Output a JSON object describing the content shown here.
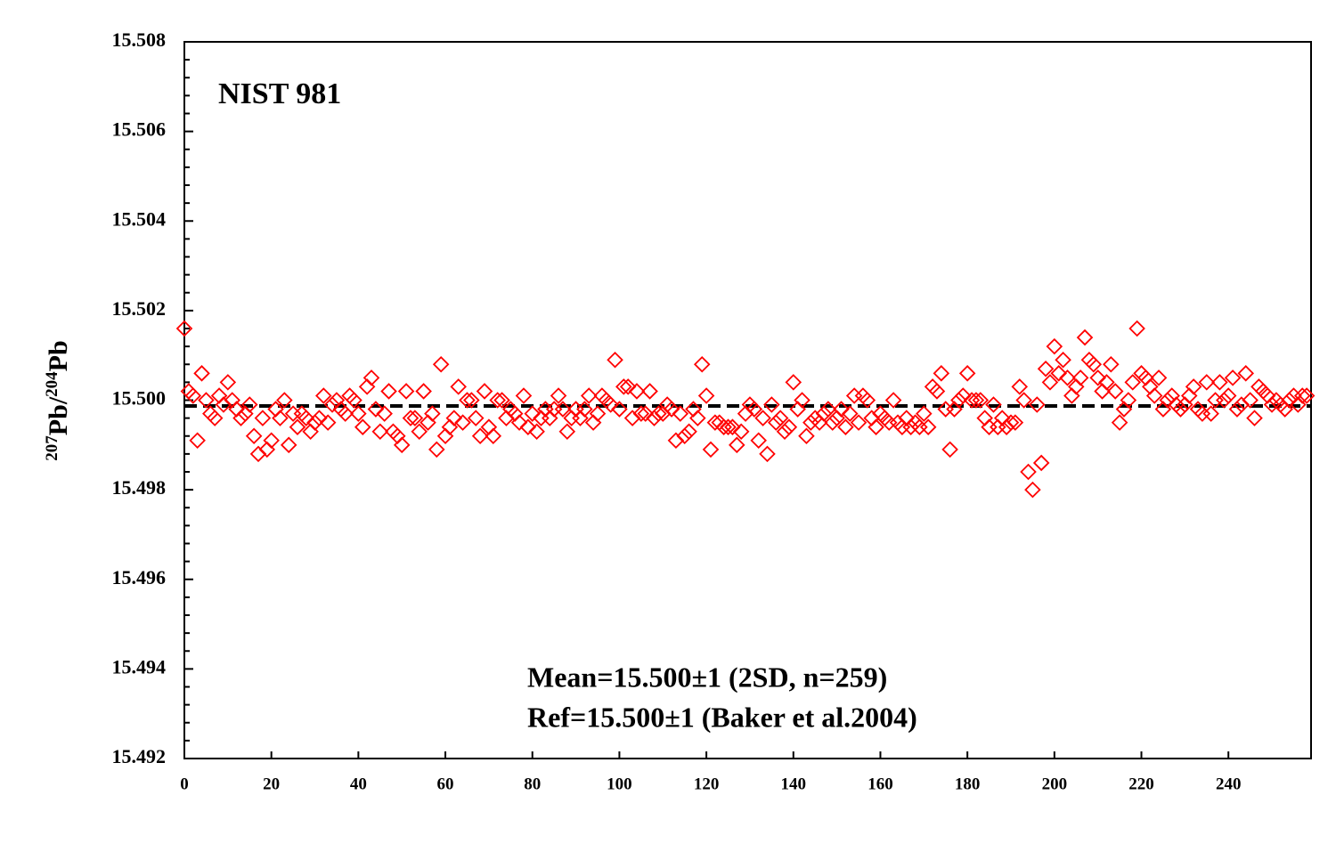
{
  "chart_data": {
    "type": "scatter",
    "title": "NIST 981",
    "ylabel": [
      "207",
      "Pb/",
      "204",
      "Pb"
    ],
    "annotations": [
      "Mean=15.500±1 (2SD, n=259)",
      "Ref=15.500±1 (Baker et al.2004)"
    ],
    "xlim": [
      0,
      259
    ],
    "ylim": [
      15.492,
      15.508
    ],
    "xticks": [
      0,
      20,
      40,
      60,
      80,
      100,
      120,
      140,
      160,
      180,
      200,
      220,
      240
    ],
    "yticks": [
      15.492,
      15.494,
      15.496,
      15.498,
      {
        "value": 15.5,
        "label": "15.500"
      },
      15.502,
      15.504,
      15.506,
      15.508
    ],
    "reference_line": {
      "value": 15.49987,
      "color": "#000000",
      "style": "dashed"
    },
    "marker": "diamond-open",
    "color": "#ff0000",
    "x": [
      0,
      1,
      2,
      3,
      4,
      5,
      6,
      7,
      8,
      9,
      10,
      11,
      12,
      13,
      14,
      15,
      16,
      17,
      18,
      19,
      20,
      21,
      22,
      23,
      24,
      25,
      26,
      27,
      28,
      29,
      30,
      31,
      32,
      33,
      34,
      35,
      36,
      37,
      38,
      39,
      40,
      41,
      42,
      43,
      44,
      45,
      46,
      47,
      48,
      49,
      50,
      51,
      52,
      53,
      54,
      55,
      56,
      57,
      58,
      59,
      60,
      61,
      62,
      63,
      64,
      65,
      66,
      67,
      68,
      69,
      70,
      71,
      72,
      73,
      74,
      75,
      76,
      77,
      78,
      79,
      80,
      81,
      82,
      83,
      84,
      85,
      86,
      87,
      88,
      89,
      90,
      91,
      92,
      93,
      94,
      95,
      96,
      97,
      98,
      99,
      100,
      101,
      102,
      103,
      104,
      105,
      106,
      107,
      108,
      109,
      110,
      111,
      112,
      113,
      114,
      115,
      116,
      117,
      118,
      119,
      120,
      121,
      122,
      123,
      124,
      125,
      126,
      127,
      128,
      129,
      130,
      131,
      132,
      133,
      134,
      135,
      136,
      137,
      138,
      139,
      140,
      141,
      142,
      143,
      144,
      145,
      146,
      147,
      148,
      149,
      150,
      151,
      152,
      153,
      154,
      155,
      156,
      157,
      158,
      159,
      160,
      161,
      162,
      163,
      164,
      165,
      166,
      167,
      168,
      169,
      170,
      171,
      172,
      173,
      174,
      175,
      176,
      177,
      178,
      179,
      180,
      181,
      182,
      183,
      184,
      185,
      186,
      187,
      188,
      189,
      190,
      191,
      192,
      193,
      194,
      195,
      196,
      197,
      198,
      199,
      200,
      201,
      202,
      203,
      204,
      205,
      206,
      207,
      208,
      209,
      210,
      211,
      212,
      213,
      214,
      215,
      216,
      217,
      218,
      219,
      220,
      221,
      222,
      223,
      224,
      225,
      226,
      227,
      228,
      229,
      230,
      231,
      232,
      233,
      234,
      235,
      236,
      237,
      238,
      239,
      240,
      241,
      242,
      243,
      244,
      245,
      246,
      247,
      248,
      249,
      250,
      251,
      252,
      253,
      254,
      255,
      256,
      257,
      258
    ],
    "values": [
      15.5016,
      15.5002,
      15.5001,
      15.4991,
      15.5006,
      15.5,
      15.4997,
      15.4996,
      15.5001,
      15.4999,
      15.5004,
      15.5,
      15.4998,
      15.4996,
      15.4997,
      15.4999,
      15.4992,
      15.4988,
      15.4996,
      15.4989,
      15.4991,
      15.4998,
      15.4996,
      15.5,
      15.499,
      15.4997,
      15.4994,
      15.4997,
      15.4996,
      15.4993,
      15.4995,
      15.4996,
      15.5001,
      15.4995,
      15.4999,
      15.5,
      15.4998,
      15.4997,
      15.5001,
      15.5,
      15.4997,
      15.4994,
      15.5003,
      15.5005,
      15.4998,
      15.4993,
      15.4997,
      15.5002,
      15.4993,
      15.4992,
      15.499,
      15.5002,
      15.4996,
      15.4996,
      15.4993,
      15.5002,
      15.4995,
      15.4997,
      15.4989,
      15.5008,
      15.4992,
      15.4994,
      15.4996,
      15.5003,
      15.4995,
      15.5,
      15.5,
      15.4996,
      15.4992,
      15.5002,
      15.4994,
      15.4992,
      15.5,
      15.5,
      15.4996,
      15.4998,
      15.4997,
      15.4995,
      15.5001,
      15.4994,
      15.4997,
      15.4993,
      15.4996,
      15.4998,
      15.4996,
      15.4998,
      15.5001,
      15.4998,
      15.4993,
      15.4996,
      15.4998,
      15.4996,
      15.4998,
      15.5001,
      15.4995,
      15.4997,
      15.5001,
      15.5,
      15.4999,
      15.5009,
      15.4998,
      15.5003,
      15.5003,
      15.4996,
      15.5002,
      15.4997,
      15.4997,
      15.5002,
      15.4996,
      15.4997,
      15.4997,
      15.4999,
      15.4998,
      15.4991,
      15.4997,
      15.4992,
      15.4993,
      15.4998,
      15.4996,
      15.5008,
      15.5001,
      15.4989,
      15.4995,
      15.4995,
      15.4994,
      15.4994,
      15.4994,
      15.499,
      15.4993,
      15.4997,
      15.4999,
      15.4998,
      15.4991,
      15.4996,
      15.4988,
      15.4999,
      15.4995,
      15.4996,
      15.4993,
      15.4994,
      15.5004,
      15.4998,
      15.5,
      15.4992,
      15.4995,
      15.4996,
      15.4995,
      15.4997,
      15.4998,
      15.4995,
      15.4996,
      15.4998,
      15.4994,
      15.4997,
      15.5001,
      15.4995,
      15.5001,
      15.5,
      15.4996,
      15.4994,
      15.4997,
      15.4996,
      15.4995,
      15.5,
      15.4995,
      15.4994,
      15.4996,
      15.4994,
      15.4995,
      15.4994,
      15.4997,
      15.4994,
      15.5003,
      15.5002,
      15.5006,
      15.4998,
      15.4989,
      15.4998,
      15.5,
      15.5001,
      15.5006,
      15.5,
      15.5,
      15.5,
      15.4996,
      15.4994,
      15.4999,
      15.4994,
      15.4996,
      15.4994,
      15.4995,
      15.4995,
      15.5003,
      15.5,
      15.4984,
      15.498,
      15.4999,
      15.4986,
      15.5007,
      15.5004,
      15.5012,
      15.5006,
      15.5009,
      15.5005,
      15.5001,
      15.5003,
      15.5005,
      15.5014,
      15.5009,
      15.5008,
      15.5005,
      15.5002,
      15.5004,
      15.5008,
      15.5002,
      15.4995,
      15.4998,
      15.5,
      15.5004,
      15.5016,
      15.5006,
      15.5005,
      15.5003,
      15.5001,
      15.5005,
      15.4998,
      15.5,
      15.5001,
      15.4999,
      15.4998,
      15.4999,
      15.5001,
      15.5003,
      15.4998,
      15.4997,
      15.5004,
      15.4997,
      15.5,
      15.5004,
      15.5,
      15.5001,
      15.5005,
      15.4998,
      15.4999,
      15.5006,
      15.5,
      15.4996,
      15.5003,
      15.5002,
      15.5001,
      15.4999,
      15.5,
      15.4999,
      15.4998,
      15.5,
      15.5001,
      15.4999,
      15.5001,
      15.5001
    ]
  }
}
